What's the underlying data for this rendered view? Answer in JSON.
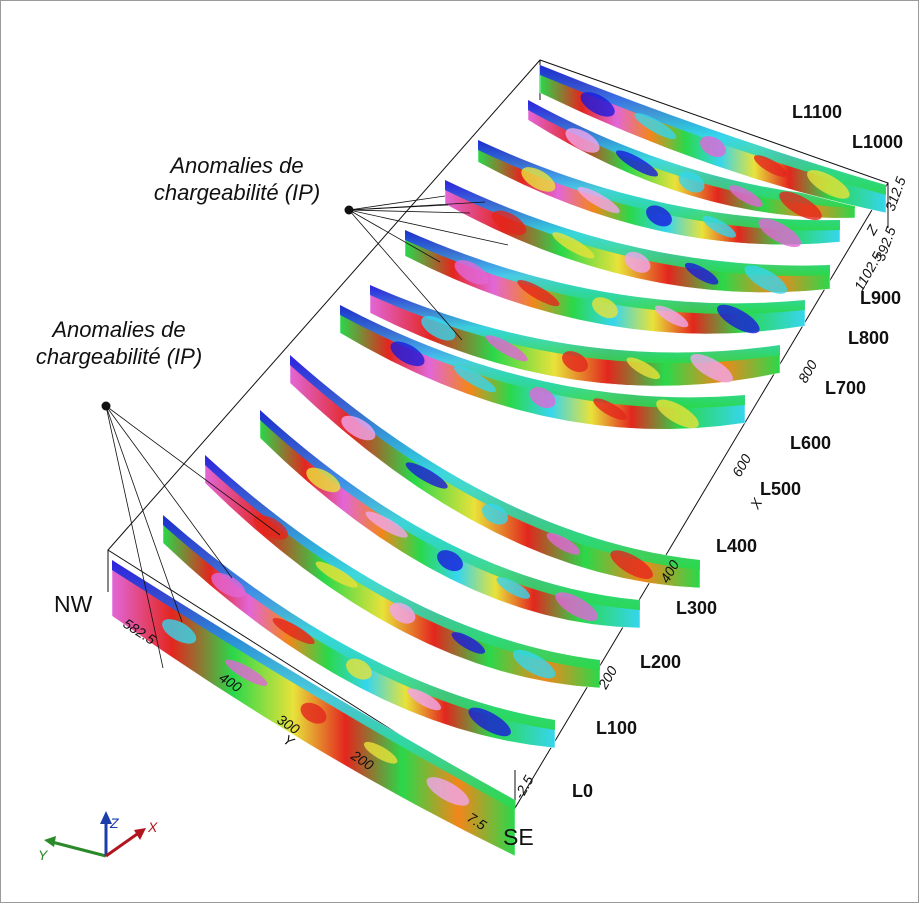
{
  "annotations": {
    "ip_label_upper_line1": "Anomalies de",
    "ip_label_upper_line2": "chargeabilité (IP)",
    "ip_label_lower_line1": "Anomalies de",
    "ip_label_lower_line2": "chargeabilité (IP)"
  },
  "directions": {
    "nw": "NW",
    "se": "SE"
  },
  "lines": [
    "L0",
    "L100",
    "L200",
    "L300",
    "L400",
    "L500",
    "L600",
    "L700",
    "L800",
    "L900",
    "L1000",
    "L1100"
  ],
  "x_axis": {
    "label": "X",
    "ticks": [
      "-2.5",
      "200",
      "400",
      "600",
      "800",
      "1102.5"
    ]
  },
  "y_axis": {
    "label": "Y",
    "ticks": [
      "582.5",
      "400",
      "300",
      "200",
      "7.5"
    ]
  },
  "z_axis": {
    "label": "Z",
    "ticks": [
      "312.5",
      "392.5"
    ]
  },
  "triad": {
    "x": "X",
    "y": "Y",
    "z": "Z"
  },
  "colors": {
    "low": "#1a1adc",
    "cyan": "#36d6ee",
    "green": "#2ad84a",
    "yellow": "#e8e23a",
    "orange": "#f2861a",
    "red": "#e3261e",
    "magenta": "#e266d8",
    "lilac": "#f0a6ee"
  }
}
